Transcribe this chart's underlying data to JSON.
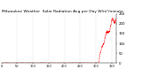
{
  "title": "Milwaukee Weather  Solar Radiation Avg per Day W/m²/minute",
  "title_fontsize": 3.2,
  "background_color": "#ffffff",
  "grid_color": "#bbbbbb",
  "line_color": "#ff0000",
  "axis_color": "#000000",
  "ylim": [
    0,
    250
  ],
  "xlim": [
    0,
    365
  ],
  "yticks": [
    0,
    50,
    100,
    150,
    200,
    250
  ],
  "ytick_fontsize": 2.8,
  "xtick_fontsize": 2.5,
  "num_points": 365,
  "spike_start": 310,
  "spike_peak": 240,
  "figwidth": 1.6,
  "figheight": 0.87,
  "dpi": 100
}
